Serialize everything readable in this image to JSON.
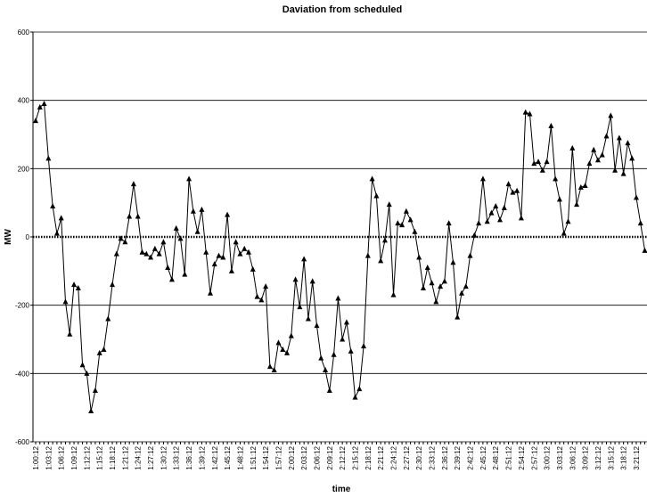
{
  "chart_data": {
    "type": "line",
    "title": "Daviation from scheduled",
    "x_label": "time",
    "y_label": "MW",
    "categories": [
      "1:00:12",
      null,
      null,
      "1:03:12",
      null,
      null,
      "1:06:12",
      null,
      null,
      "1:09:12",
      null,
      null,
      "1:12:12",
      null,
      null,
      "1:15:12",
      null,
      null,
      "1:18:12",
      null,
      null,
      "1:21:12",
      null,
      null,
      "1:24:12",
      null,
      null,
      "1:27:12",
      null,
      null,
      "1:30:12",
      null,
      null,
      "1:33:12",
      null,
      null,
      "1:36:12",
      null,
      null,
      "1:39:12",
      null,
      null,
      "1:42:12",
      null,
      null,
      "1:45:12",
      null,
      null,
      "1:48:12",
      null,
      null,
      "1:51:12",
      null,
      null,
      "1:54:12",
      null,
      null,
      "1:57:12",
      null,
      null,
      "2:00:12",
      null,
      null,
      "2:03:12",
      null,
      null,
      "2:06:12",
      null,
      null,
      "2:09:12",
      null,
      null,
      "2:12:12",
      null,
      null,
      "2:15:12",
      null,
      null,
      "2:18:12",
      null,
      null,
      "2:21:12",
      null,
      null,
      "2:24:12",
      null,
      null,
      "2:27:12",
      null,
      null,
      "2:30:12",
      null,
      null,
      "2:33:12",
      null,
      null,
      "2:36:12",
      null,
      null,
      "2:39:12",
      null,
      null,
      "2:42:12",
      null,
      null,
      "2:45:12",
      null,
      null,
      "2:48:12",
      null,
      null,
      "2:51:12",
      null,
      null,
      "2:54:12",
      null,
      null,
      "2:57:12",
      null,
      null,
      "3:00:12",
      null,
      null,
      "3:03:12",
      null,
      null,
      "3:06:12",
      null,
      null,
      "3:09:12",
      null,
      null,
      "3:12:12",
      null,
      null,
      "3:15:12",
      null,
      null,
      "3:18:12",
      null,
      null,
      "3:21:12",
      null,
      null
    ],
    "values": [
      340,
      380,
      390,
      230,
      90,
      10,
      55,
      -190,
      -285,
      -140,
      -150,
      -375,
      -400,
      -510,
      -450,
      -340,
      -330,
      -240,
      -140,
      -50,
      -5,
      -15,
      60,
      155,
      60,
      -45,
      -50,
      -60,
      -35,
      -50,
      -15,
      -90,
      -125,
      25,
      -5,
      -110,
      170,
      75,
      15,
      80,
      -45,
      -165,
      -80,
      -55,
      -60,
      65,
      -100,
      -15,
      -50,
      -35,
      -45,
      -95,
      -175,
      -185,
      -145,
      -380,
      -390,
      -310,
      -330,
      -340,
      -290,
      -125,
      -205,
      -65,
      -240,
      -130,
      -260,
      -355,
      -390,
      -450,
      -345,
      -180,
      -300,
      -250,
      -335,
      -470,
      -445,
      -320,
      -55,
      170,
      120,
      -70,
      -10,
      95,
      -170,
      40,
      35,
      75,
      50,
      15,
      -60,
      -150,
      -90,
      -135,
      -190,
      -145,
      -130,
      40,
      -75,
      -235,
      -165,
      -145,
      -55,
      5,
      40,
      170,
      45,
      70,
      90,
      50,
      85,
      155,
      130,
      135,
      55,
      365,
      360,
      215,
      220,
      195,
      220,
      325,
      170,
      110,
      10,
      45,
      260,
      95,
      145,
      150,
      215,
      255,
      225,
      240,
      295,
      355,
      195,
      290,
      185,
      275,
      230,
      115,
      40,
      -40
    ],
    "color": "#000000",
    "ylim": [
      -600,
      600
    ],
    "yticks": [
      -600,
      -400,
      -200,
      0,
      200,
      400,
      600
    ],
    "grid": true
  }
}
